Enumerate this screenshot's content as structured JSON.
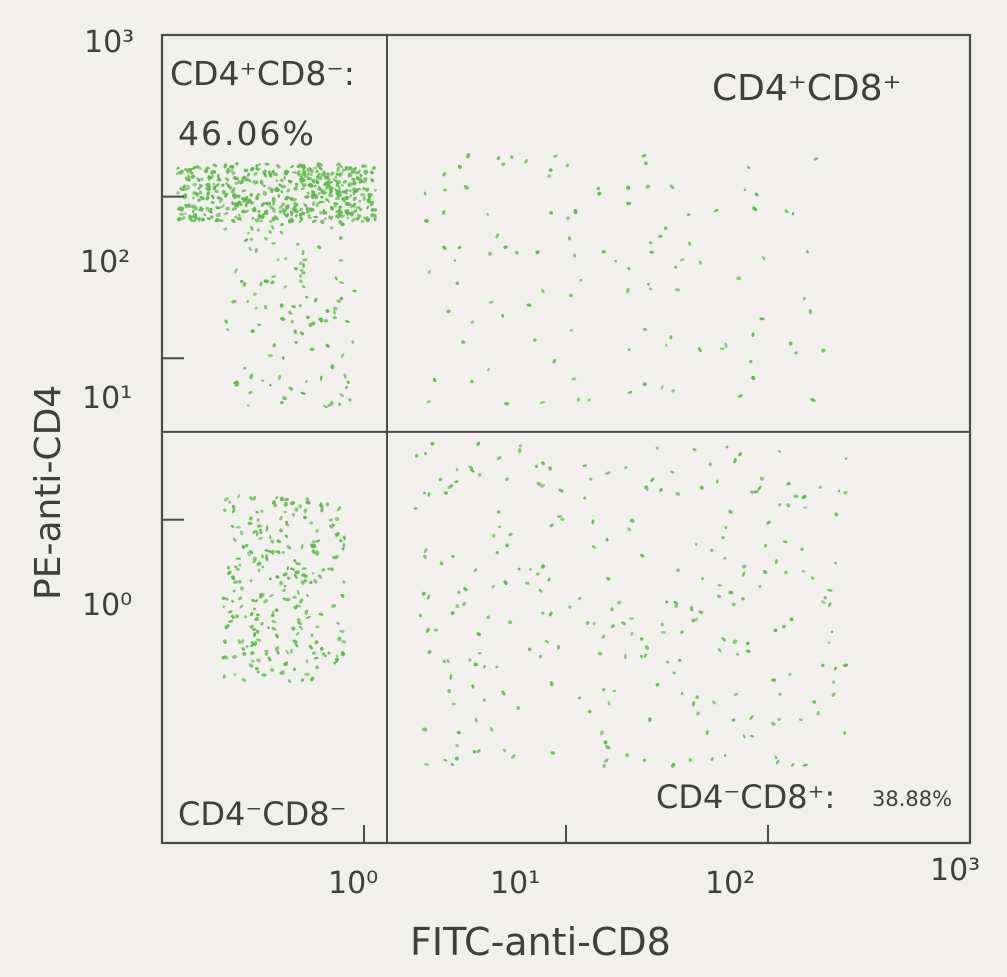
{
  "chart_data": {
    "type": "scatter",
    "title": "",
    "xlabel": "FITC-anti-CD8",
    "ylabel": "PE-anti-CD4",
    "x_scale": "log",
    "y_scale": "log",
    "xlim": [
      0.1,
      1000
    ],
    "ylim": [
      0.01,
      1000
    ],
    "x_ticks": [
      {
        "value": 1,
        "label": "10⁰"
      },
      {
        "value": 10,
        "label": "10¹"
      },
      {
        "value": 100,
        "label": "10²"
      },
      {
        "value": 1000,
        "label": "10³"
      }
    ],
    "y_ticks": [
      {
        "value": 1,
        "label": "10⁰"
      },
      {
        "value": 10,
        "label": "10¹"
      },
      {
        "value": 100,
        "label": "10²"
      },
      {
        "value": 1000,
        "label": "10³"
      }
    ],
    "gates": {
      "x": 1.3,
      "y": 3.5
    },
    "quadrants": [
      {
        "id": "upper-left",
        "label": "CD4⁺CD8⁻:",
        "value": "46.06%"
      },
      {
        "id": "upper-right",
        "label": "CD4⁺CD8⁺",
        "value": ""
      },
      {
        "id": "lower-left",
        "label": "CD4⁻CD8⁻",
        "value": ""
      },
      {
        "id": "lower-right",
        "label": "CD4⁻CD8⁺:",
        "value": "38.88%"
      }
    ],
    "clusters": [
      {
        "quadrant": "upper-left",
        "x_range": [
          0.12,
          1.15
        ],
        "y_range": [
          70,
          160
        ],
        "density": "high"
      },
      {
        "quadrant": "upper-left",
        "x_range": [
          0.2,
          0.9
        ],
        "y_range": [
          5,
          70
        ],
        "density": "low"
      },
      {
        "quadrant": "upper-right",
        "x_range": [
          2,
          200
        ],
        "y_range": [
          5,
          180
        ],
        "density": "low"
      },
      {
        "quadrant": "lower-left",
        "x_range": [
          0.2,
          0.8
        ],
        "y_range": [
          0.1,
          1.4
        ],
        "density": "medium"
      },
      {
        "quadrant": "lower-right",
        "x_range": [
          1.8,
          250
        ],
        "y_range": [
          0.03,
          3
        ],
        "density": "medium"
      }
    ],
    "grid": false,
    "legend": "none",
    "point_color": "#5db94a",
    "ink_color": "#3f3f3f"
  }
}
